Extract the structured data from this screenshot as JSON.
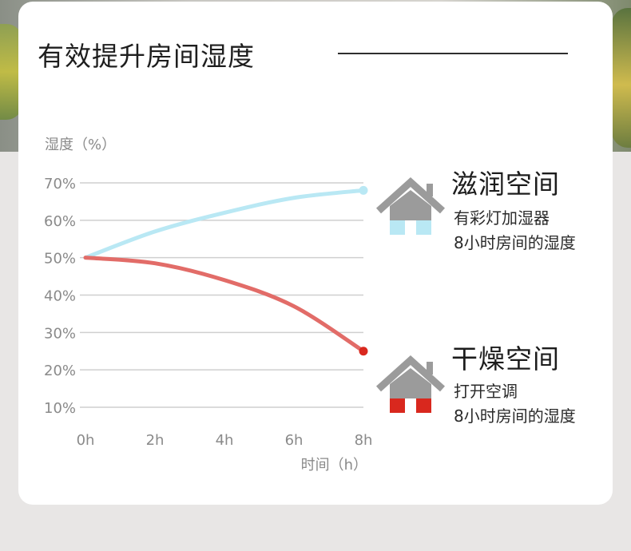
{
  "heading": "有效提升房间湿度",
  "chart_data": {
    "type": "line",
    "ylabel": "湿度（%）",
    "xlabel": "时间（h）",
    "x": [
      0,
      2,
      4,
      6,
      8
    ],
    "x_tick_labels": [
      "0h",
      "2h",
      "4h",
      "6h",
      "8h"
    ],
    "y_ticks": [
      10,
      20,
      30,
      40,
      50,
      60,
      70
    ],
    "y_tick_labels": [
      "10%",
      "20%",
      "30%",
      "40%",
      "50%",
      "60%",
      "70%"
    ],
    "xlim": [
      0,
      8
    ],
    "ylim": [
      10,
      70
    ],
    "grid": true,
    "series": [
      {
        "name": "滋润空间",
        "color": "#b9e8f4",
        "end_marker_color": "#b9e8f4",
        "values": [
          50,
          57,
          62,
          66,
          68
        ]
      },
      {
        "name": "干燥空间",
        "color": "#e26c68",
        "end_marker_color": "#d9281e",
        "values": [
          50,
          48.5,
          44,
          37,
          25
        ]
      }
    ]
  },
  "legend": [
    {
      "title": "滋润空间",
      "lines": [
        "有彩灯加湿器",
        "8小时房间的湿度"
      ],
      "icon": "house-icon",
      "roof_color": "#9b9b9b",
      "base_color": "#b9e8f4"
    },
    {
      "title": "干燥空间",
      "lines": [
        "打开空调",
        "8小时房间的湿度"
      ],
      "icon": "house-icon",
      "roof_color": "#9b9b9b",
      "base_color": "#d9281e"
    }
  ]
}
